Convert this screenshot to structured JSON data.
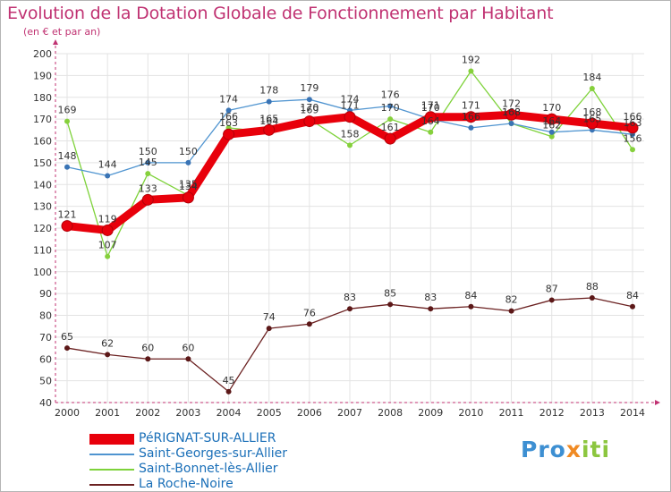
{
  "title": "Evolution de la Dotation Globale de Fonctionnement par Habitant",
  "subtitle": "(en € et par an)",
  "logo": {
    "part1": "Pro",
    "part2": "x",
    "part3": "iti"
  },
  "colors": {
    "title": "#c03272",
    "axis": "#c03272",
    "grid": "#e3e3e3",
    "legend_text": "#1a6fb8"
  },
  "chart_data": {
    "type": "line",
    "title": "Evolution de la Dotation Globale de Fonctionnement par Habitant",
    "ylabel": "(en € et par an)",
    "xlabel": "",
    "ylim": [
      40,
      200
    ],
    "yticks": [
      40,
      50,
      60,
      70,
      80,
      90,
      100,
      110,
      120,
      130,
      140,
      150,
      160,
      170,
      180,
      190,
      200
    ],
    "categories": [
      "2000",
      "2001",
      "2002",
      "2003",
      "2004",
      "2005",
      "2006",
      "2007",
      "2008",
      "2009",
      "2010",
      "2011",
      "2012",
      "2013",
      "2014"
    ],
    "grid": true,
    "legend_position": "bottom-left",
    "series": [
      {
        "name": "PéRIGNAT-SUR-ALLIER",
        "color": "#e8000b",
        "marker": "#e8000b",
        "values": [
          121,
          119,
          133,
          134,
          163,
          165,
          169,
          171,
          161,
          171,
          171,
          172,
          170,
          168,
          166
        ],
        "labels": [
          "121",
          "119",
          "133",
          "134",
          "163",
          "165",
          "169",
          "171",
          "161",
          "171",
          "171",
          "172",
          "170",
          "168",
          "166"
        ]
      },
      {
        "name": "Saint-Georges-sur-Allier",
        "color": "#4f94d0",
        "marker": "#3a74b5",
        "values": [
          148,
          144,
          150,
          150,
          174,
          178,
          179,
          174,
          176,
          170,
          166,
          168,
          164,
          165,
          163
        ],
        "labels": [
          "148",
          "144",
          "150",
          "150",
          "174",
          "178",
          "179",
          "174",
          "176",
          "170",
          "166",
          "168",
          "164",
          "165",
          "163"
        ]
      },
      {
        "name": "Saint-Bonnet-lès-Allier",
        "color": "#7ed23a",
        "marker": "#86d03c",
        "values": [
          169,
          107,
          145,
          135,
          166,
          164,
          170,
          158,
          170,
          164,
          192,
          168,
          162,
          184,
          156
        ],
        "labels": [
          "169",
          "107",
          "145",
          "135",
          "166",
          "164",
          "170",
          "158",
          "170",
          "164",
          "192",
          "168",
          "162",
          "184",
          "156"
        ]
      },
      {
        "name": "La Roche-Noire",
        "color": "#6b2121",
        "marker": "#5c1818",
        "values": [
          65,
          62,
          60,
          60,
          45,
          74,
          76,
          83,
          85,
          83,
          84,
          82,
          87,
          88,
          84
        ],
        "labels": [
          "65",
          "62",
          "60",
          "60",
          "45",
          "74",
          "76",
          "83",
          "85",
          "83",
          "84",
          "82",
          "87",
          "88",
          "84"
        ]
      }
    ]
  },
  "legend": [
    {
      "label": "PéRIGNAT-SUR-ALLIER"
    },
    {
      "label": "Saint-Georges-sur-Allier"
    },
    {
      "label": "Saint-Bonnet-lès-Allier"
    },
    {
      "label": "La Roche-Noire"
    }
  ]
}
